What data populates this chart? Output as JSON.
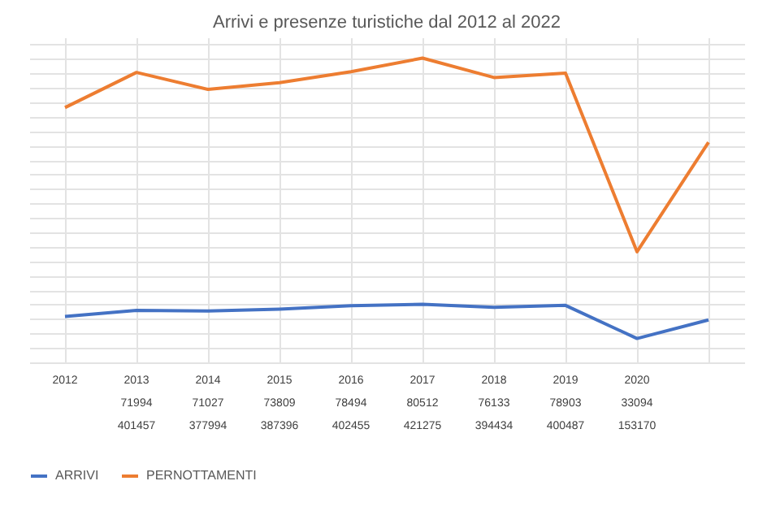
{
  "chart_data": {
    "type": "line",
    "title": "Arrivi e presenze turistiche dal 2012 al 2022",
    "categories": [
      "2012",
      "2013",
      "2014",
      "2015",
      "2016",
      "2017",
      "2018",
      "2019",
      "2020",
      null
    ],
    "series": [
      {
        "name": "ARRIVI",
        "color": "#4472c4",
        "values": [
          63600,
          71994,
          71027,
          73809,
          78494,
          80512,
          76133,
          78903,
          33094,
          58800
        ],
        "value_labels": [
          null,
          "71994",
          "71027",
          "73809",
          "78494",
          "80512",
          "76133",
          "78903",
          "33094",
          null
        ]
      },
      {
        "name": "PERNOTTAMENTI",
        "color": "#ed7d31",
        "values": [
          352800,
          401457,
          377994,
          387396,
          402455,
          421275,
          394434,
          400487,
          153170,
          304700
        ],
        "value_labels": [
          null,
          "401457",
          "377994",
          "387396",
          "402455",
          "421275",
          "394434",
          "400487",
          "153170",
          null
        ]
      }
    ],
    "grid": true,
    "legend": "bottom",
    "marker": "none",
    "line_style": "solid"
  }
}
